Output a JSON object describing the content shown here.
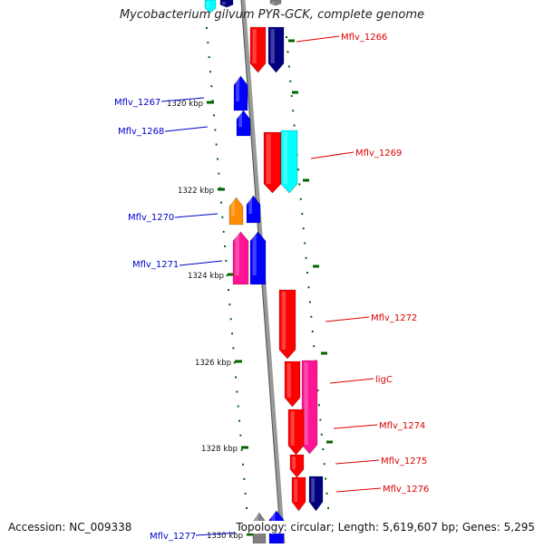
{
  "title": "Mycobacterium gilvum PYR-GCK, complete genome",
  "footer": {
    "accession": "Accession: NC_009338",
    "topology": "Topology: circular; Length: 5,619,607 bp; Genes: 5,295"
  },
  "colors": {
    "red": "#ff0000",
    "navy": "#000080",
    "blue": "#0000ff",
    "cyan": "#00ffff",
    "orange": "#ff8c00",
    "magenta": "#ff1493",
    "gray": "#808080",
    "tick": "#006400"
  },
  "tick_labels": [
    "1320 kbp",
    "1322 kbp",
    "1324 kbp",
    "1326 kbp",
    "1328 kbp",
    "1330 kbp"
  ],
  "gene_labels": [
    {
      "name": "Mflv_1266",
      "strand": "forward"
    },
    {
      "name": "Mflv_1267",
      "strand": "reverse"
    },
    {
      "name": "Mflv_1268",
      "strand": "reverse"
    },
    {
      "name": "Mflv_1269",
      "strand": "forward"
    },
    {
      "name": "Mflv_1270",
      "strand": "reverse"
    },
    {
      "name": "Mflv_1271",
      "strand": "reverse"
    },
    {
      "name": "Mflv_1272",
      "strand": "forward"
    },
    {
      "name": "ligC",
      "strand": "forward"
    },
    {
      "name": "Mflv_1274",
      "strand": "forward"
    },
    {
      "name": "Mflv_1275",
      "strand": "forward"
    },
    {
      "name": "Mflv_1276",
      "strand": "forward"
    },
    {
      "name": "Mflv_1277",
      "strand": "reverse"
    }
  ]
}
